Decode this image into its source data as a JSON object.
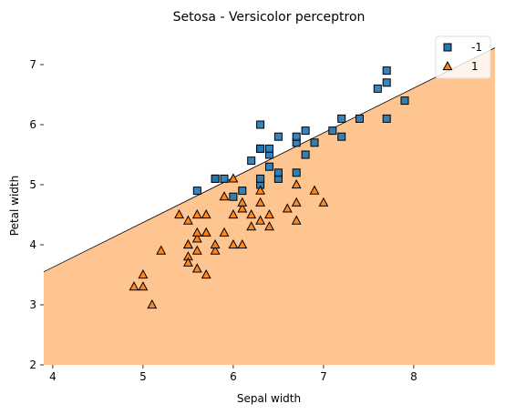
{
  "chart_data": {
    "type": "scatter",
    "title": "Setosa - Versicolor perceptron",
    "xlabel": "Sepal width",
    "ylabel": "Petal width",
    "xlim": [
      3.9,
      8.9
    ],
    "ylim": [
      2.0,
      7.5
    ],
    "xticks": [
      4,
      5,
      6,
      7,
      8
    ],
    "yticks": [
      2,
      3,
      4,
      5,
      6,
      7
    ],
    "legend_position": "top-right",
    "decision_boundary": {
      "description": "class 1 region below line",
      "x": [
        3.9,
        8.9
      ],
      "y": [
        3.55,
        7.28
      ],
      "region_color": "#ffc591",
      "boundary_color": "#000000"
    },
    "series": [
      {
        "name": "-1",
        "marker": "square",
        "color": "#1f77b4",
        "points": [
          [
            5.6,
            4.9
          ],
          [
            5.8,
            5.1
          ],
          [
            5.8,
            5.1
          ],
          [
            5.9,
            5.1
          ],
          [
            6.1,
            4.9
          ],
          [
            6.0,
            4.8
          ],
          [
            6.3,
            5.0
          ],
          [
            6.3,
            5.1
          ],
          [
            6.2,
            5.4
          ],
          [
            6.3,
            5.6
          ],
          [
            6.3,
            5.6
          ],
          [
            6.3,
            6.0
          ],
          [
            6.4,
            5.5
          ],
          [
            6.4,
            5.6
          ],
          [
            6.4,
            5.3
          ],
          [
            6.5,
            5.8
          ],
          [
            6.5,
            5.1
          ],
          [
            6.5,
            5.2
          ],
          [
            6.7,
            5.2
          ],
          [
            6.7,
            5.7
          ],
          [
            6.7,
            5.8
          ],
          [
            6.8,
            5.5
          ],
          [
            6.8,
            5.9
          ],
          [
            6.9,
            5.7
          ],
          [
            7.1,
            5.9
          ],
          [
            7.2,
            6.1
          ],
          [
            7.2,
            5.8
          ],
          [
            7.4,
            6.1
          ],
          [
            7.6,
            6.6
          ],
          [
            7.7,
            6.9
          ],
          [
            7.7,
            6.7
          ],
          [
            7.7,
            6.1
          ],
          [
            7.9,
            6.4
          ]
        ]
      },
      {
        "name": "1",
        "marker": "triangle",
        "color": "#ff7f0e",
        "points": [
          [
            4.9,
            3.3
          ],
          [
            5.0,
            3.5
          ],
          [
            5.0,
            3.3
          ],
          [
            5.1,
            3.0
          ],
          [
            5.2,
            3.9
          ],
          [
            5.4,
            4.5
          ],
          [
            5.5,
            4.0
          ],
          [
            5.5,
            4.0
          ],
          [
            5.5,
            3.8
          ],
          [
            5.5,
            3.7
          ],
          [
            5.5,
            4.4
          ],
          [
            5.6,
            3.6
          ],
          [
            5.6,
            3.9
          ],
          [
            5.6,
            4.1
          ],
          [
            5.6,
            4.2
          ],
          [
            5.6,
            4.5
          ],
          [
            5.7,
            3.5
          ],
          [
            5.7,
            4.2
          ],
          [
            5.7,
            4.2
          ],
          [
            5.7,
            4.5
          ],
          [
            5.8,
            3.9
          ],
          [
            5.8,
            4.0
          ],
          [
            5.9,
            4.2
          ],
          [
            5.9,
            4.8
          ],
          [
            6.0,
            4.0
          ],
          [
            6.0,
            4.5
          ],
          [
            6.0,
            5.1
          ],
          [
            6.1,
            4.0
          ],
          [
            6.1,
            4.6
          ],
          [
            6.1,
            4.7
          ],
          [
            6.2,
            4.3
          ],
          [
            6.2,
            4.5
          ],
          [
            6.3,
            4.4
          ],
          [
            6.3,
            4.7
          ],
          [
            6.3,
            4.9
          ],
          [
            6.4,
            4.3
          ],
          [
            6.4,
            4.5
          ],
          [
            6.6,
            4.6
          ],
          [
            6.7,
            4.4
          ],
          [
            6.7,
            4.7
          ],
          [
            6.7,
            5.0
          ],
          [
            6.9,
            4.9
          ],
          [
            7.0,
            4.7
          ]
        ]
      }
    ]
  }
}
